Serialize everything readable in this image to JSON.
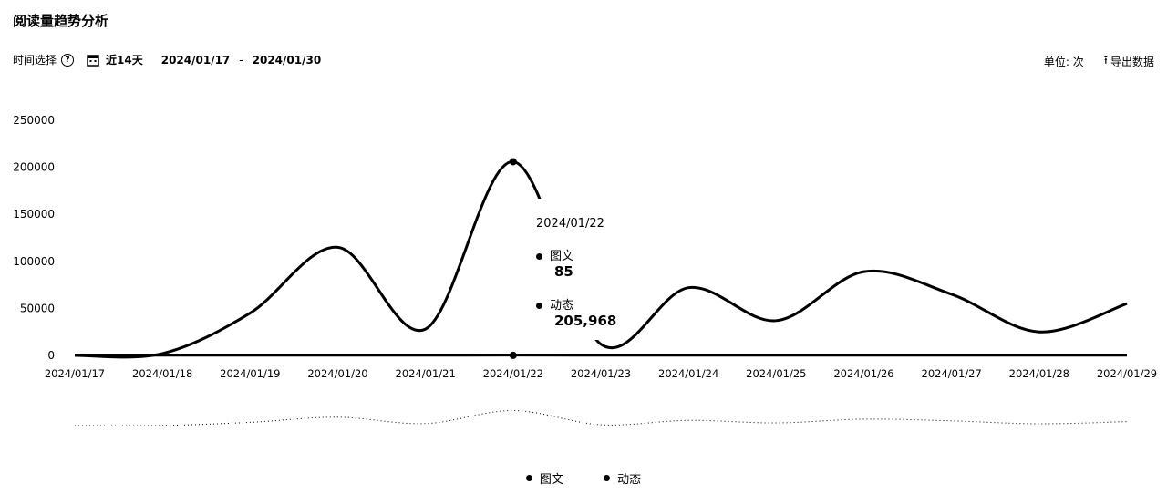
{
  "header": {
    "title": "阅读量趋势分析"
  },
  "toolbar": {
    "time_label": "时间选择",
    "help_glyph": "?",
    "range_label": "近14天",
    "date_start": "2024/01/17",
    "date_separator": "-",
    "date_end": "2024/01/30",
    "unit_label": "单位: 次",
    "export_label": "导出数据",
    "icons": [
      "help-icon",
      "calendar-icon",
      "export-icon"
    ]
  },
  "chart_data": {
    "type": "line",
    "x": [
      "2024/01/17",
      "2024/01/18",
      "2024/01/19",
      "2024/01/20",
      "2024/01/21",
      "2024/01/22",
      "2024/01/23",
      "2024/01/24",
      "2024/01/25",
      "2024/01/26",
      "2024/01/27",
      "2024/01/28",
      "2024/01/29"
    ],
    "series": [
      {
        "name": "图文",
        "values": [
          0,
          0,
          0,
          0,
          0,
          85,
          0,
          0,
          0,
          0,
          0,
          0,
          0
        ]
      },
      {
        "name": "动态",
        "values": [
          0,
          2000,
          45000,
          115000,
          28000,
          205968,
          12000,
          72000,
          37000,
          89000,
          65000,
          25000,
          55000
        ]
      }
    ],
    "yticks": [
      0,
      50000,
      100000,
      150000,
      200000,
      250000
    ],
    "ylim": [
      0,
      250000
    ],
    "legend": "bottom"
  },
  "tooltip": {
    "date": "2024/01/22",
    "items": [
      {
        "name": "图文",
        "value": "85"
      },
      {
        "name": "动态",
        "value": "205,968"
      }
    ]
  },
  "legend": {
    "items": [
      "图文",
      "动态"
    ]
  }
}
